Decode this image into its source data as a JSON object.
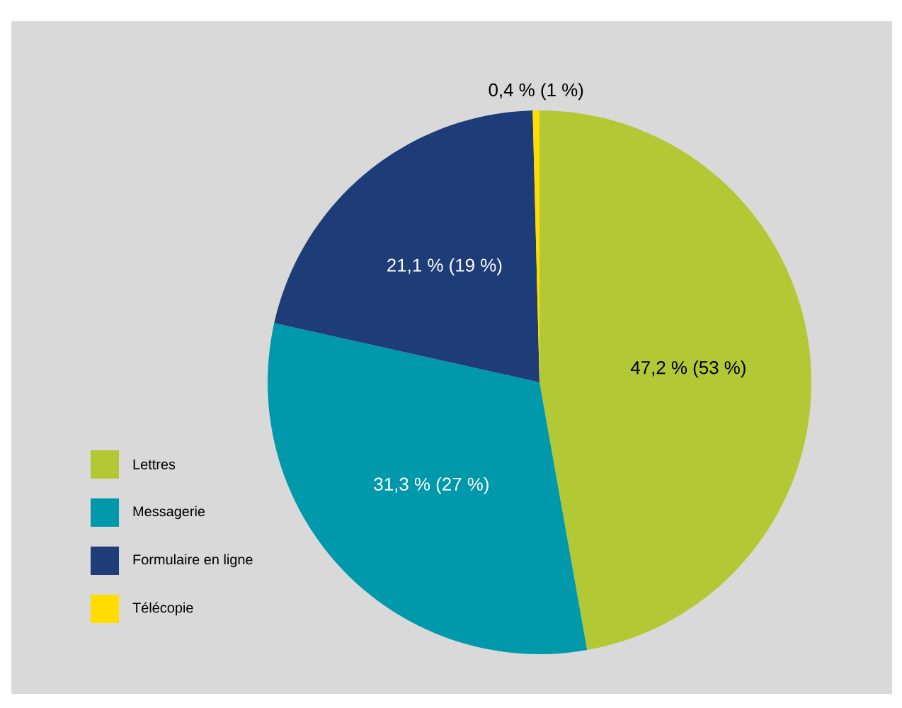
{
  "chart_data": {
    "type": "pie",
    "categories": [
      "Lettres",
      "Messagerie",
      "Formulaire en ligne",
      "Télécopie"
    ],
    "values": [
      47.2,
      31.3,
      21.1,
      0.4
    ],
    "value_labels": [
      "47,2 % (53 %)",
      "31,3 % (27 %)",
      "21,1 % (19 %)",
      "0,4 % (1 %)"
    ],
    "colors": [
      "#b2c935",
      "#0098ab",
      "#1e3c78",
      "#ffdd00"
    ],
    "legend": "bottom left"
  }
}
